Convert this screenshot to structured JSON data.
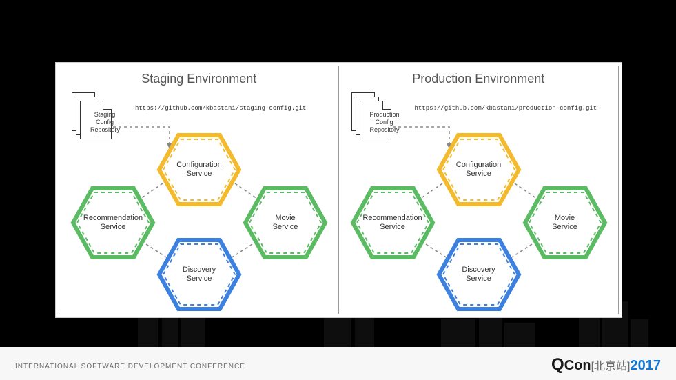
{
  "footer": {
    "conference_text": "INTERNATIONAL SOFTWARE DEVELOPMENT CONFERENCE",
    "logo_q": "Q",
    "logo_con": "Con",
    "logo_station": "[北京站]",
    "logo_year": "2017"
  },
  "colors": {
    "yellow": "#f3ba2e",
    "green": "#5bbb63",
    "blue": "#3c81e0",
    "dash": "#888888"
  },
  "hex_labels": {
    "config": "Configuration\nService",
    "recommend": "Recommendation\nService",
    "movie": "Movie\nService",
    "discovery": "Discovery\nService"
  },
  "environments": [
    {
      "key": "staging",
      "title": "Staging Environment",
      "repo_label": "Staging\nConfig\nRepository",
      "repo_url": "https://github.com/kbastani/staging-config.git"
    },
    {
      "key": "production",
      "title": "Production Environment",
      "repo_label": "Production\nConfig\nRepository",
      "repo_url": "https://github.com/kbastani/production-config.git"
    }
  ]
}
